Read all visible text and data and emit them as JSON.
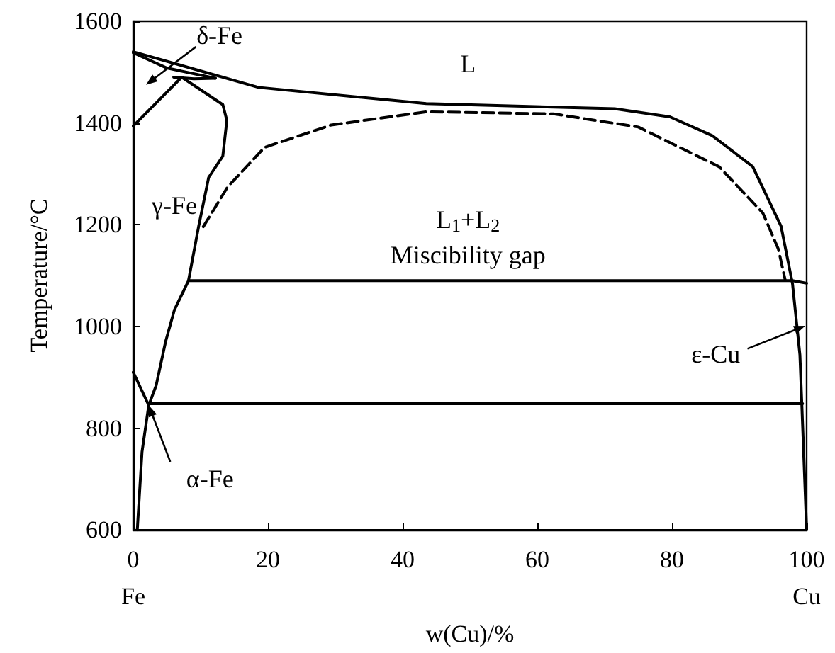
{
  "chart_data": {
    "type": "line",
    "xlabel": "w(Cu)/%",
    "ylabel": "Temperature/°C",
    "xlim": [
      0,
      100
    ],
    "ylim": [
      600,
      1600
    ],
    "xticks": [
      {
        "value": 0,
        "label": "0\nFe"
      },
      20,
      40,
      60,
      80,
      {
        "value": 100,
        "label": "100\nCu"
      }
    ],
    "yticks": [
      600,
      800,
      1000,
      1200,
      1400,
      1600
    ],
    "grid": false,
    "marker": "none",
    "series": [
      {
        "color": "#000000",
        "line_style": "solid",
        "x": [
          0,
          18.6,
          43.5,
          71.5,
          79.7,
          86,
          92,
          96.2,
          97.9,
          99,
          100
        ],
        "values": [
          1540,
          1470,
          1438,
          1428,
          1412,
          1375,
          1314,
          1197,
          1084,
          944,
          600
        ]
      },
      {
        "color": "#000000",
        "line_style": "dashed",
        "x": [
          10.4,
          14,
          19.5,
          29.4,
          43.5,
          62.4,
          75,
          87,
          93.5,
          95.8,
          96.8
        ],
        "values": [
          1196,
          1274,
          1352,
          1396,
          1422,
          1418,
          1392,
          1314,
          1223,
          1152,
          1092
        ]
      },
      {
        "color": "#000000",
        "line_style": "solid",
        "x": [
          0,
          7.2,
          13.3,
          13.9,
          13.3,
          11.2,
          9.7,
          8.2,
          6.1,
          4.8,
          3.4,
          2.3,
          1.3,
          0.6
        ],
        "values": [
          1394,
          1490,
          1436,
          1405,
          1335,
          1293,
          1196,
          1090,
          1032,
          970,
          884,
          845,
          753,
          600
        ]
      },
      {
        "color": "#000000",
        "line_style": "solid",
        "x": [
          0,
          5,
          12.2
        ],
        "values": [
          1538,
          1508,
          1488
        ]
      },
      {
        "color": "#000000",
        "line_style": "solid",
        "x": [
          6,
          9,
          12.2
        ],
        "values": [
          1490,
          1487,
          1488
        ]
      },
      {
        "color": "#000000",
        "line_style": "solid",
        "x": [
          8.2,
          97.9,
          100
        ],
        "values": [
          1090,
          1090,
          1085
        ]
      },
      {
        "color": "#000000",
        "line_style": "solid",
        "x": [
          0,
          2.3
        ],
        "values": [
          910,
          845
        ]
      },
      {
        "color": "#000000",
        "line_style": "solid",
        "x": [
          2.3,
          99.4
        ],
        "values": [
          848,
          848
        ]
      }
    ],
    "annotations": [
      "δ-Fe",
      "L",
      "γ-Fe",
      "L$_{1}$+L$_{2}$",
      "Miscibility gap",
      "ε-Cu",
      {
        "text": "α-Fe",
        "x": 2.3,
        "y": 845
      }
    ]
  }
}
